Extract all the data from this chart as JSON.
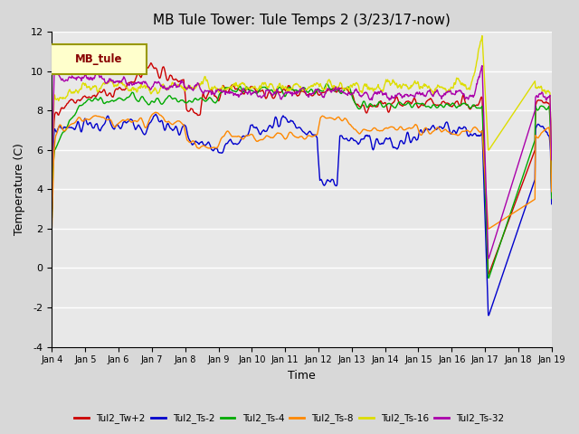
{
  "title": "MB Tule Tower: Tule Temps 2 (3/23/17-now)",
  "xlabel": "Time",
  "ylabel": "Temperature (C)",
  "ylim": [
    -4,
    12
  ],
  "yticks": [
    -4,
    -2,
    0,
    2,
    4,
    6,
    8,
    10,
    12
  ],
  "background_color": "#d8d8d8",
  "plot_bg_color": "#e8e8e8",
  "series_colors": {
    "Tul2_Tw+2": "#cc0000",
    "Tul2_Ts-2": "#0000cc",
    "Tul2_Ts-4": "#00aa00",
    "Tul2_Ts-8": "#ff8800",
    "Tul2_Ts-16": "#dddd00",
    "Tul2_Ts-32": "#aa00aa"
  },
  "legend_label": "MB_tule",
  "n_points": 900,
  "xtick_labels": [
    "Jan 4",
    "Jan 5",
    "Jan 6",
    "Jan 7",
    "Jan 8",
    "Jan 9",
    "Jan 10",
    "Jan 11",
    "Jan 12",
    "Jan 13",
    "Jan 14",
    "Jan 15",
    "Jan 16",
    "Jan 17",
    "Jan 18",
    "Jan 19"
  ],
  "figsize": [
    6.4,
    4.8
  ],
  "dpi": 100
}
